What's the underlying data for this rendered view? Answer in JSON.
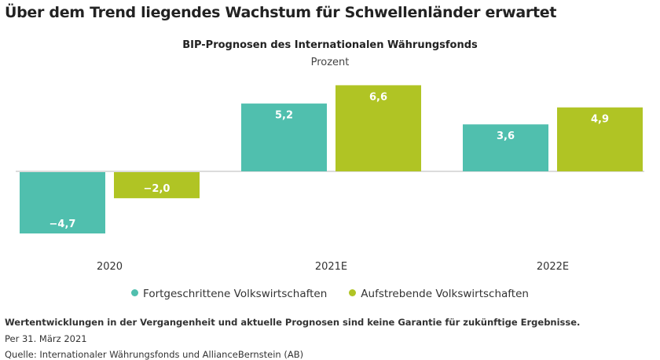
{
  "title": "Über dem Trend liegendes Wachstum für Schwellenländer erwartet",
  "chart_data": {
    "type": "bar",
    "title": "BIP-Prognosen des Internationalen Währungsfonds",
    "ylabel": "Prozent",
    "categories": [
      "2020",
      "2021E",
      "2022E"
    ],
    "series": [
      {
        "name": "Fortgeschrittene Volkswirtschaften",
        "values": [
          -4.7,
          5.2,
          3.6
        ],
        "labels": [
          "−4,7",
          "5,2",
          "3,6"
        ],
        "color": "#50bfae"
      },
      {
        "name": "Aufstrebende Volkswirtschaften",
        "values": [
          -2.0,
          6.6,
          4.9
        ],
        "labels": [
          "−2,0",
          "6,6",
          "4,9"
        ],
        "color": "#b0c424"
      }
    ],
    "grid": false,
    "legend": "bottom"
  },
  "footer": {
    "disclaimer": "Wertentwicklungen in der Vergangenheit und aktuelle Prognosen sind keine Garantie für zukünftige Ergebnisse.",
    "date": "Per 31. März 2021",
    "source": "Quelle: Internationaler Währungsfonds und AllianceBernstein (AB)"
  }
}
